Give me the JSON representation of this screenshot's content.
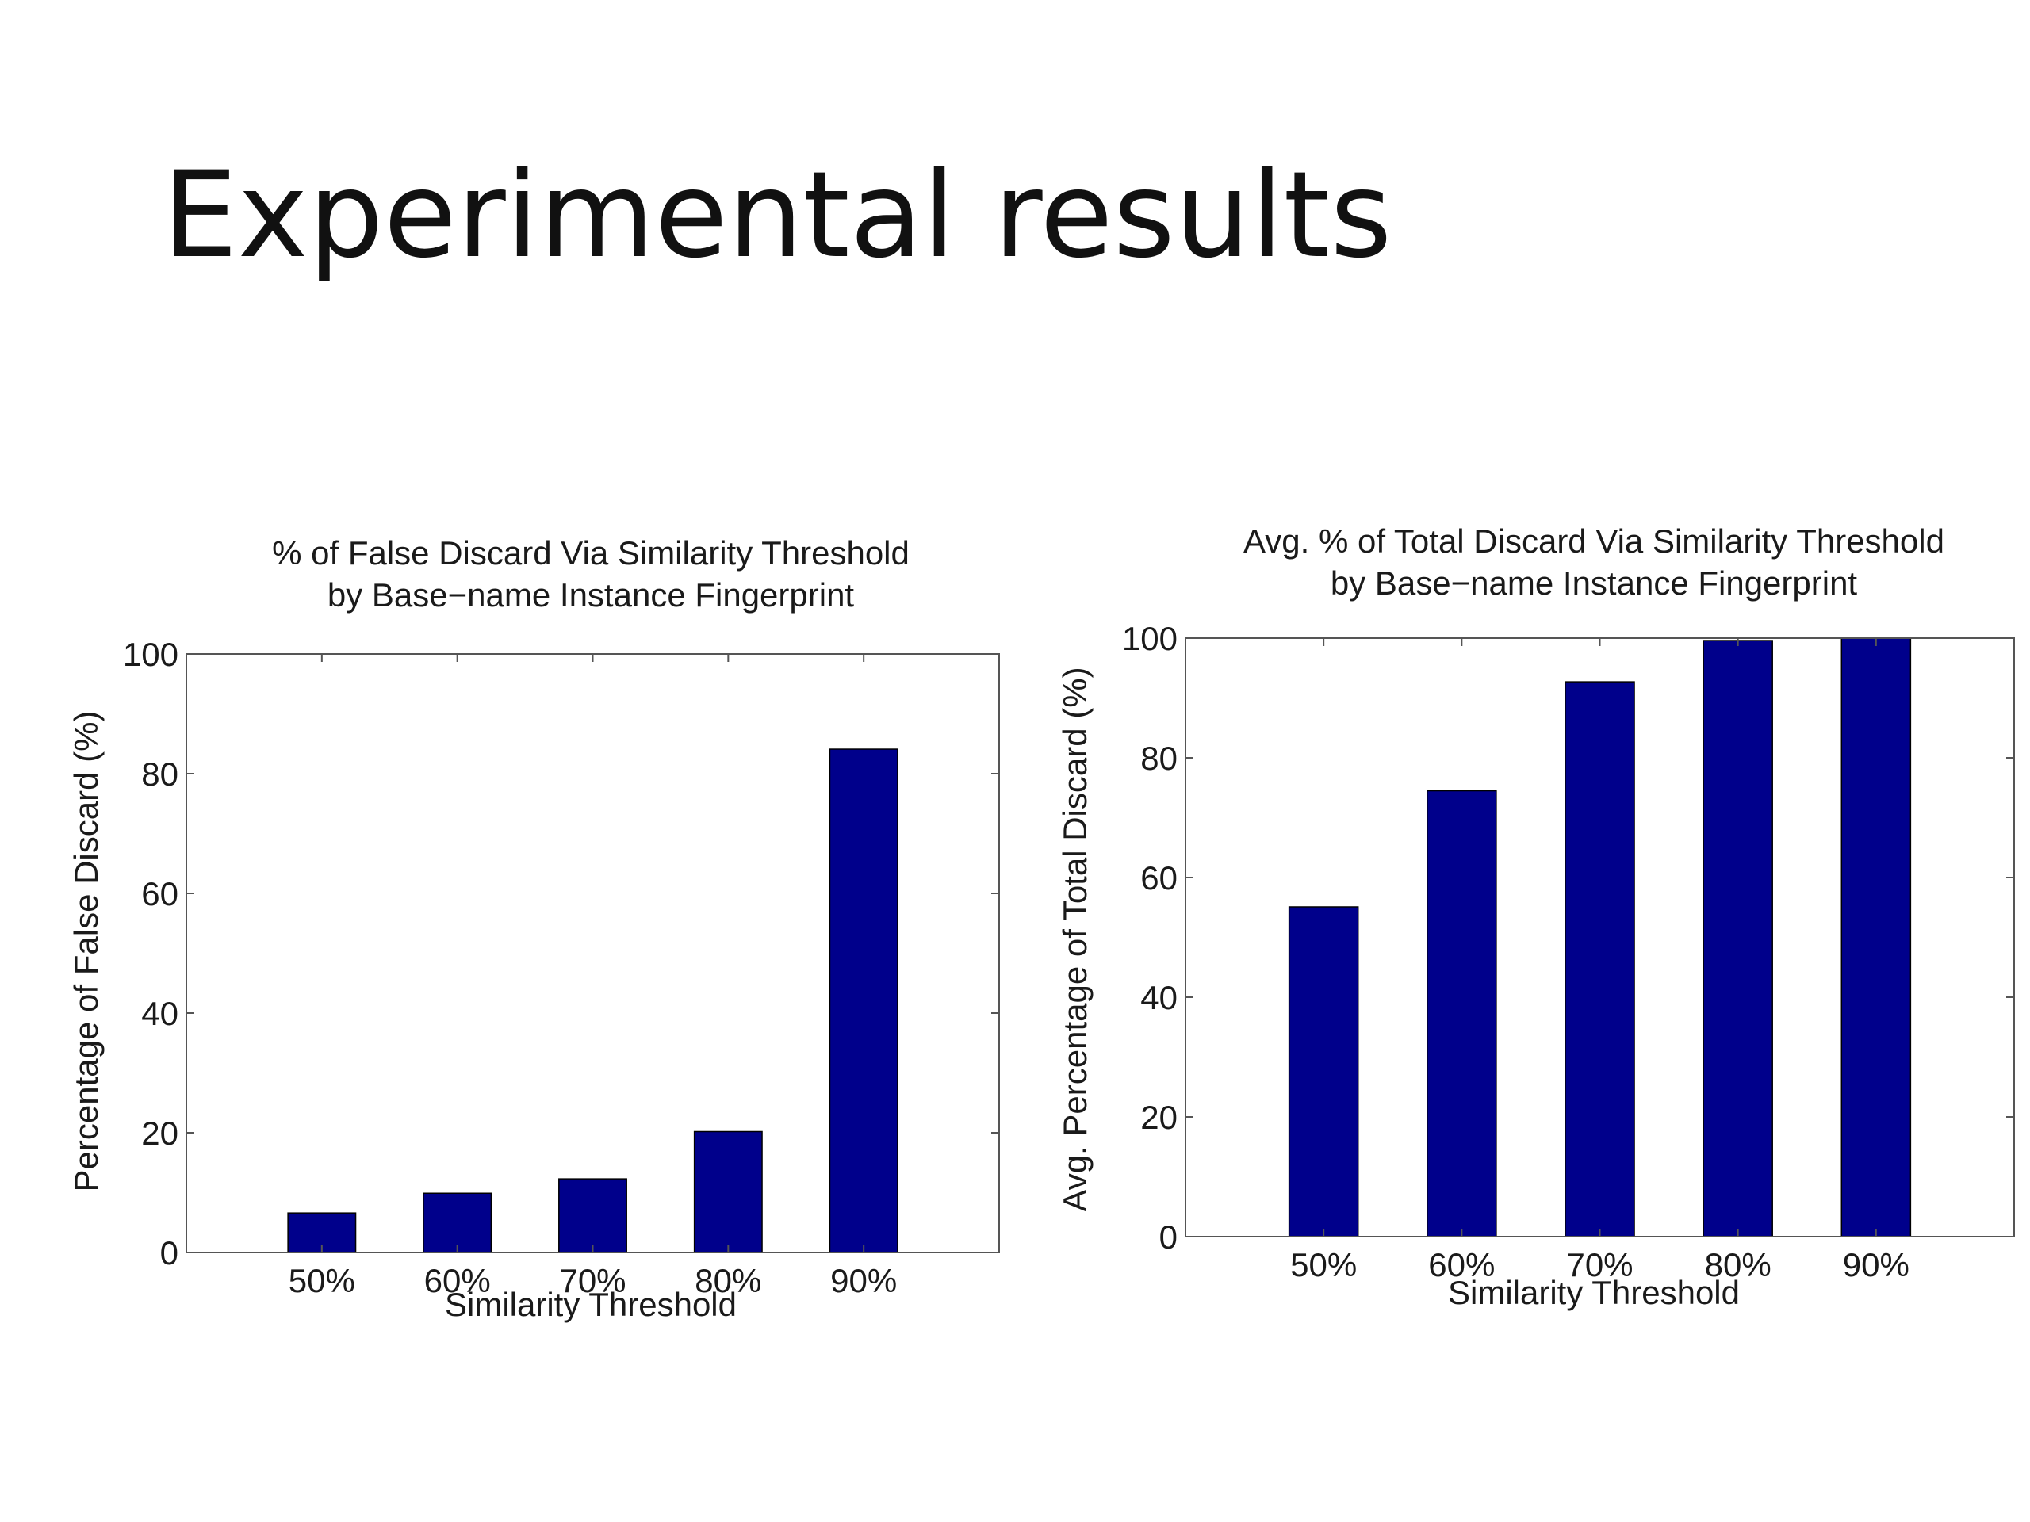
{
  "slide": {
    "title": "Experimental results"
  },
  "chart_data": [
    {
      "type": "bar",
      "title": "% of False Discard Via Similarity Threshold",
      "subtitle": "by Base−name Instance Fingerprint",
      "xlabel": "Similarity Threshold",
      "ylabel": "Percentage of False Discard (%)",
      "categories": [
        "50%",
        "60%",
        "70%",
        "80%",
        "90%"
      ],
      "values": [
        6.6,
        9.9,
        12.3,
        20.2,
        84.1
      ],
      "ylim": [
        0,
        100
      ],
      "yticks": [
        0,
        20,
        40,
        60,
        80,
        100
      ],
      "grid": false,
      "bar_color": "#00008b"
    },
    {
      "type": "bar",
      "title": "Avg. % of Total Discard Via Similarity Threshold",
      "subtitle": "by Base−name Instance Fingerprint",
      "xlabel": "Similarity Threshold",
      "ylabel": "Avg. Percentage of Total Discard (%)",
      "categories": [
        "50%",
        "60%",
        "70%",
        "80%",
        "90%"
      ],
      "values": [
        55.1,
        74.5,
        92.7,
        99.6,
        100
      ],
      "ylim": [
        0,
        100
      ],
      "yticks": [
        0,
        20,
        40,
        60,
        80,
        100
      ],
      "grid": false,
      "bar_color": "#00008b"
    }
  ]
}
